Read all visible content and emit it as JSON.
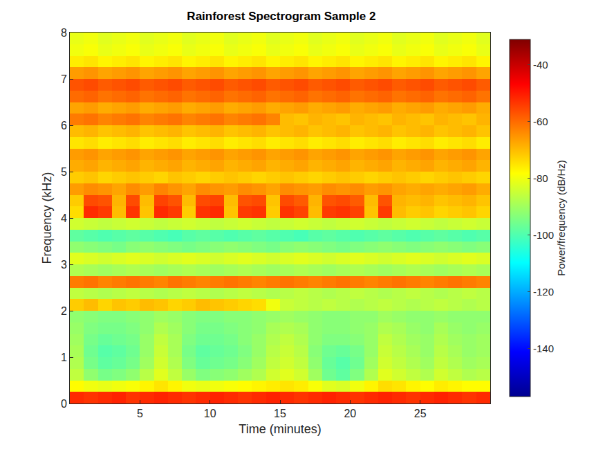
{
  "chart_data": {
    "type": "heatmap",
    "title": "Rainforest Spectrogram Sample 2",
    "x_label": "Time (minutes)",
    "y_label": "Frequency (kHz)",
    "xlim": [
      0,
      30
    ],
    "ylim": [
      0,
      8
    ],
    "xticks": [
      5,
      10,
      15,
      20,
      25
    ],
    "yticks": [
      0,
      1,
      2,
      3,
      4,
      5,
      6,
      7,
      8
    ],
    "colorbar": {
      "title": "Power/frequency (dB/Hz)",
      "range": [
        -157,
        -31
      ],
      "ticks": [
        -140,
        -120,
        -100,
        -80,
        -60,
        -40
      ]
    },
    "x": [
      0.5,
      1.5,
      2.5,
      3.5,
      4.5,
      5.5,
      6.5,
      7.5,
      8.5,
      9.5,
      10.5,
      11.5,
      12.5,
      13.5,
      14.5,
      15.5,
      16.5,
      17.5,
      18.5,
      19.5,
      20.5,
      21.5,
      22.5,
      23.5,
      24.5,
      25.5,
      26.5,
      27.5,
      28.5,
      29.5
    ],
    "y": [
      0.125,
      0.375,
      0.625,
      0.875,
      1.125,
      1.375,
      1.625,
      1.875,
      2.125,
      2.375,
      2.625,
      2.875,
      3.125,
      3.375,
      3.625,
      3.875,
      4.125,
      4.375,
      4.625,
      4.875,
      5.125,
      5.375,
      5.625,
      5.875,
      6.125,
      6.375,
      6.625,
      6.875,
      7.125,
      7.375,
      7.625,
      7.875
    ],
    "z": [
      [
        -52,
        -53,
        -52,
        -51,
        -53,
        -52,
        -51,
        -52,
        -53,
        -52,
        -51,
        -52,
        -53,
        -52,
        -51,
        -52,
        -53,
        -52,
        -51,
        -52,
        -53,
        -52,
        -51,
        -52,
        -53,
        -52,
        -51,
        -52,
        -53,
        -52
      ],
      [
        -78,
        -80,
        -81,
        -80,
        -79,
        -77,
        -75,
        -77,
        -80,
        -81,
        -80,
        -79,
        -78,
        -77,
        -76,
        -75,
        -76,
        -79,
        -82,
        -83,
        -80,
        -77,
        -74,
        -75,
        -77,
        -78,
        -76,
        -77,
        -78,
        -78
      ],
      [
        -86,
        -92,
        -95,
        -94,
        -92,
        -87,
        -82,
        -86,
        -91,
        -94,
        -93,
        -92,
        -90,
        -88,
        -84,
        -82,
        -84,
        -90,
        -96,
        -98,
        -94,
        -88,
        -82,
        -84,
        -86,
        -88,
        -84,
        -86,
        -88,
        -87
      ],
      [
        -88,
        -95,
        -98,
        -97,
        -95,
        -90,
        -84,
        -88,
        -94,
        -97,
        -96,
        -95,
        -93,
        -90,
        -86,
        -84,
        -86,
        -92,
        -97,
        -99,
        -96,
        -90,
        -84,
        -86,
        -88,
        -90,
        -86,
        -88,
        -90,
        -89
      ],
      [
        -89,
        -96,
        -99,
        -98,
        -96,
        -91,
        -85,
        -89,
        -95,
        -98,
        -97,
        -96,
        -94,
        -91,
        -87,
        -85,
        -87,
        -93,
        -96,
        -97,
        -95,
        -91,
        -85,
        -87,
        -89,
        -91,
        -87,
        -89,
        -91,
        -90
      ],
      [
        -90,
        -95,
        -97,
        -96,
        -95,
        -91,
        -86,
        -89,
        -94,
        -96,
        -96,
        -95,
        -93,
        -91,
        -88,
        -86,
        -88,
        -92,
        -94,
        -94,
        -93,
        -91,
        -86,
        -88,
        -90,
        -91,
        -88,
        -90,
        -91,
        -90
      ],
      [
        -91,
        -94,
        -95,
        -95,
        -94,
        -92,
        -88,
        -90,
        -93,
        -95,
        -95,
        -94,
        -93,
        -92,
        -89,
        -88,
        -89,
        -92,
        -93,
        -93,
        -92,
        -91,
        -88,
        -89,
        -91,
        -92,
        -89,
        -91,
        -92,
        -91
      ],
      [
        -92,
        -93,
        -94,
        -94,
        -93,
        -92,
        -90,
        -91,
        -93,
        -94,
        -94,
        -93,
        -93,
        -92,
        -91,
        -90,
        -91,
        -92,
        -93,
        -93,
        -92,
        -92,
        -90,
        -91,
        -92,
        -92,
        -91,
        -92,
        -92,
        -92
      ],
      [
        -72,
        -70,
        -73,
        -71,
        -72,
        -70,
        -71,
        -73,
        -72,
        -70,
        -71,
        -72,
        -73,
        -74,
        -80,
        -85,
        -86,
        -87,
        -86,
        -87,
        -88,
        -87,
        -86,
        -87,
        -88,
        -87,
        -86,
        -87,
        -88,
        -87
      ],
      [
        -86,
        -87,
        -88,
        -87,
        -86,
        -87,
        -88,
        -87,
        -86,
        -87,
        -88,
        -87,
        -86,
        -87,
        -88,
        -87,
        -86,
        -87,
        -88,
        -87,
        -86,
        -87,
        -88,
        -87,
        -86,
        -87,
        -88,
        -87,
        -86,
        -87
      ],
      [
        -62,
        -61,
        -63,
        -62,
        -61,
        -62,
        -63,
        -61,
        -62,
        -63,
        -62,
        -61,
        -62,
        -63,
        -62,
        -61,
        -62,
        -63,
        -62,
        -61,
        -62,
        -63,
        -62,
        -61,
        -62,
        -63,
        -62,
        -61,
        -62,
        -63
      ],
      [
        -88,
        -89,
        -90,
        -89,
        -88,
        -89,
        -90,
        -89,
        -88,
        -89,
        -90,
        -89,
        -88,
        -89,
        -90,
        -89,
        -88,
        -89,
        -90,
        -89,
        -88,
        -89,
        -90,
        -89,
        -88,
        -89,
        -90,
        -89,
        -88,
        -89
      ],
      [
        -82,
        -83,
        -84,
        -83,
        -82,
        -83,
        -84,
        -83,
        -82,
        -83,
        -84,
        -83,
        -82,
        -83,
        -84,
        -83,
        -82,
        -83,
        -84,
        -83,
        -82,
        -83,
        -84,
        -83,
        -82,
        -83,
        -84,
        -83,
        -82,
        -83
      ],
      [
        -92,
        -93,
        -94,
        -95,
        -93,
        -92,
        -93,
        -94,
        -95,
        -94,
        -93,
        -92,
        -93,
        -94,
        -95,
        -93,
        -92,
        -93,
        -94,
        -95,
        -94,
        -93,
        -92,
        -93,
        -94,
        -93,
        -92,
        -93,
        -94,
        -93
      ],
      [
        -98,
        -99,
        -100,
        -99,
        -98,
        -99,
        -100,
        -101,
        -99,
        -98,
        -99,
        -100,
        -99,
        -98,
        -99,
        -100,
        -101,
        -99,
        -98,
        -99,
        -100,
        -99,
        -98,
        -99,
        -100,
        -99,
        -98,
        -99,
        -100,
        -99
      ],
      [
        -84,
        -85,
        -86,
        -85,
        -84,
        -85,
        -86,
        -85,
        -84,
        -85,
        -86,
        -85,
        -84,
        -85,
        -86,
        -85,
        -84,
        -85,
        -86,
        -85,
        -84,
        -85,
        -86,
        -85,
        -84,
        -85,
        -86,
        -85,
        -84,
        -85
      ],
      [
        -74,
        -52,
        -54,
        -70,
        -53,
        -71,
        -52,
        -54,
        -72,
        -53,
        -52,
        -71,
        -54,
        -53,
        -72,
        -53,
        -55,
        -70,
        -54,
        -53,
        -55,
        -71,
        -54,
        -70,
        -72,
        -71,
        -73,
        -72,
        -71,
        -73
      ],
      [
        -72,
        -56,
        -57,
        -69,
        -56,
        -70,
        -55,
        -57,
        -70,
        -56,
        -55,
        -70,
        -57,
        -56,
        -71,
        -56,
        -58,
        -69,
        -57,
        -56,
        -58,
        -70,
        -57,
        -69,
        -70,
        -69,
        -71,
        -70,
        -69,
        -71
      ],
      [
        -66,
        -64,
        -65,
        -67,
        -64,
        -66,
        -63,
        -65,
        -67,
        -64,
        -65,
        -66,
        -64,
        -65,
        -67,
        -64,
        -65,
        -66,
        -64,
        -65,
        -64,
        -66,
        -65,
        -67,
        -68,
        -67,
        -68,
        -67,
        -66,
        -68
      ],
      [
        -72,
        -71,
        -73,
        -72,
        -71,
        -72,
        -73,
        -71,
        -72,
        -73,
        -72,
        -71,
        -72,
        -73,
        -72,
        -71,
        -72,
        -73,
        -72,
        -71,
        -72,
        -73,
        -72,
        -71,
        -72,
        -73,
        -72,
        -71,
        -72,
        -73
      ],
      [
        -68,
        -67,
        -69,
        -68,
        -67,
        -69,
        -68,
        -67,
        -69,
        -68,
        -67,
        -69,
        -68,
        -67,
        -69,
        -68,
        -67,
        -69,
        -68,
        -67,
        -69,
        -68,
        -67,
        -69,
        -68,
        -67,
        -69,
        -68,
        -67,
        -69
      ],
      [
        -66,
        -65,
        -67,
        -66,
        -65,
        -67,
        -66,
        -65,
        -67,
        -66,
        -65,
        -67,
        -66,
        -65,
        -67,
        -66,
        -65,
        -67,
        -66,
        -65,
        -67,
        -66,
        -65,
        -67,
        -66,
        -65,
        -67,
        -66,
        -65,
        -67
      ],
      [
        -75,
        -74,
        -76,
        -75,
        -74,
        -76,
        -75,
        -74,
        -76,
        -75,
        -74,
        -76,
        -75,
        -74,
        -76,
        -75,
        -74,
        -76,
        -75,
        -74,
        -76,
        -75,
        -74,
        -76,
        -75,
        -74,
        -76,
        -75,
        -74,
        -76
      ],
      [
        -70,
        -69,
        -71,
        -70,
        -69,
        -71,
        -70,
        -69,
        -71,
        -70,
        -69,
        -71,
        -70,
        -69,
        -71,
        -70,
        -69,
        -71,
        -70,
        -69,
        -71,
        -70,
        -69,
        -71,
        -70,
        -69,
        -71,
        -70,
        -69,
        -71
      ],
      [
        -62,
        -61,
        -63,
        -62,
        -61,
        -63,
        -62,
        -61,
        -63,
        -62,
        -61,
        -63,
        -62,
        -61,
        -63,
        -70,
        -71,
        -69,
        -70,
        -71,
        -69,
        -70,
        -71,
        -69,
        -70,
        -71,
        -69,
        -70,
        -71,
        -69
      ],
      [
        -67,
        -66,
        -68,
        -67,
        -66,
        -68,
        -67,
        -66,
        -68,
        -67,
        -66,
        -68,
        -67,
        -66,
        -68,
        -67,
        -66,
        -68,
        -67,
        -66,
        -68,
        -67,
        -66,
        -68,
        -67,
        -66,
        -68,
        -67,
        -66,
        -68
      ],
      [
        -60,
        -59,
        -61,
        -60,
        -59,
        -61,
        -60,
        -59,
        -61,
        -60,
        -59,
        -61,
        -60,
        -59,
        -61,
        -60,
        -59,
        -61,
        -60,
        -59,
        -61,
        -60,
        -59,
        -61,
        -60,
        -59,
        -61,
        -60,
        -59,
        -61
      ],
      [
        -57,
        -56,
        -58,
        -57,
        -56,
        -58,
        -57,
        -56,
        -58,
        -57,
        -56,
        -58,
        -57,
        -56,
        -58,
        -57,
        -56,
        -58,
        -57,
        -56,
        -58,
        -57,
        -56,
        -58,
        -57,
        -56,
        -58,
        -57,
        -56,
        -58
      ],
      [
        -66,
        -65,
        -67,
        -66,
        -65,
        -67,
        -66,
        -65,
        -67,
        -66,
        -65,
        -67,
        -66,
        -65,
        -67,
        -66,
        -65,
        -67,
        -66,
        -65,
        -67,
        -66,
        -65,
        -67,
        -66,
        -65,
        -67,
        -66,
        -65,
        -67
      ],
      [
        -76,
        -75,
        -77,
        -76,
        -75,
        -77,
        -76,
        -75,
        -77,
        -76,
        -75,
        -77,
        -76,
        -75,
        -77,
        -76,
        -75,
        -77,
        -76,
        -75,
        -77,
        -76,
        -75,
        -77,
        -76,
        -75,
        -77,
        -76,
        -75,
        -77
      ],
      [
        -80,
        -79,
        -81,
        -80,
        -79,
        -81,
        -80,
        -79,
        -81,
        -80,
        -79,
        -81,
        -80,
        -79,
        -81,
        -80,
        -79,
        -81,
        -80,
        -79,
        -81,
        -80,
        -79,
        -81,
        -80,
        -79,
        -81,
        -80,
        -79,
        -81
      ],
      [
        -81,
        -80,
        -82,
        -81,
        -80,
        -82,
        -81,
        -80,
        -82,
        -81,
        -80,
        -82,
        -81,
        -80,
        -82,
        -81,
        -80,
        -82,
        -81,
        -80,
        -82,
        -81,
        -80,
        -82,
        -81,
        -80,
        -82,
        -81,
        -80,
        -82
      ]
    ]
  }
}
